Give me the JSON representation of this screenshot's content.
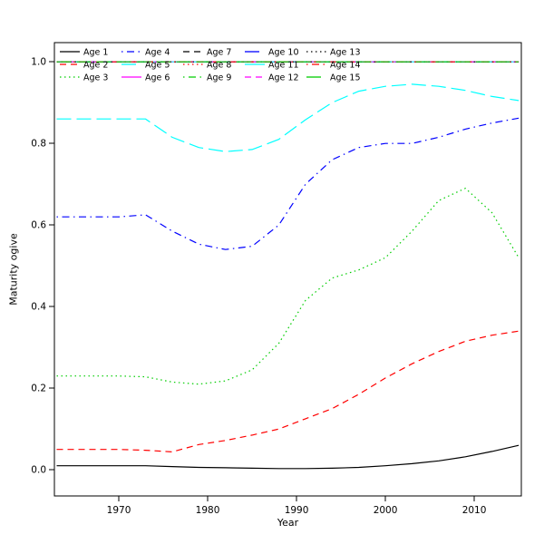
{
  "chart_data": {
    "type": "line",
    "title": "",
    "xlabel": "Year",
    "ylabel": "Maturity ogive",
    "xlim": [
      1962.75,
      2015.3
    ],
    "ylim": [
      -0.064,
      1.047
    ],
    "grid": false,
    "x_ticks": [
      1970,
      1980,
      1990,
      2000,
      2010
    ],
    "x_tick_labels": [
      "1970",
      "1980",
      "1990",
      "2000",
      "2010"
    ],
    "y_ticks": [
      0.0,
      0.2,
      0.4,
      0.6,
      0.8,
      1.0
    ],
    "y_tick_labels": [
      "0.0",
      "0.2",
      "0.4",
      "0.6",
      "0.8",
      "1.0"
    ],
    "legend": {
      "position": "top-left",
      "rows": 3,
      "columns": 5
    },
    "x": [
      1963,
      1966,
      1970,
      1973,
      1976,
      1979,
      1982,
      1985,
      1988,
      1991,
      1994,
      1997,
      2000,
      2003,
      2006,
      2009,
      2012,
      2015
    ],
    "series": [
      {
        "name": "Age 1",
        "color": "#000000",
        "linetype": "solid",
        "values": [
          0.01,
          0.01,
          0.01,
          0.01,
          0.008,
          0.006,
          0.005,
          0.004,
          0.003,
          0.003,
          0.004,
          0.006,
          0.01,
          0.015,
          0.022,
          0.032,
          0.045,
          0.06
        ]
      },
      {
        "name": "Age 2",
        "color": "#FF0000",
        "linetype": "dashed",
        "values": [
          0.05,
          0.05,
          0.05,
          0.048,
          0.044,
          0.062,
          0.072,
          0.085,
          0.1,
          0.125,
          0.15,
          0.185,
          0.225,
          0.26,
          0.29,
          0.315,
          0.33,
          0.34
        ]
      },
      {
        "name": "Age 3",
        "color": "#00CD00",
        "linetype": "dotted",
        "values": [
          0.23,
          0.23,
          0.23,
          0.228,
          0.215,
          0.21,
          0.218,
          0.245,
          0.31,
          0.415,
          0.47,
          0.49,
          0.52,
          0.585,
          0.66,
          0.69,
          0.63,
          0.52
        ]
      },
      {
        "name": "Age 4",
        "color": "#0000FF",
        "linetype": "dotdash",
        "values": [
          0.62,
          0.62,
          0.62,
          0.625,
          0.585,
          0.553,
          0.54,
          0.548,
          0.6,
          0.7,
          0.76,
          0.79,
          0.8,
          0.8,
          0.815,
          0.835,
          0.85,
          0.862
        ]
      },
      {
        "name": "Age 5",
        "color": "#00FFFF",
        "linetype": "longdash",
        "values": [
          0.86,
          0.86,
          0.86,
          0.86,
          0.815,
          0.79,
          0.78,
          0.785,
          0.81,
          0.858,
          0.9,
          0.928,
          0.94,
          0.945,
          0.94,
          0.93,
          0.915,
          0.905
        ]
      },
      {
        "name": "Age 6",
        "color": "#FF00FF",
        "linetype": "solid",
        "values": [
          1,
          1,
          1,
          1,
          1,
          1,
          1,
          1,
          1,
          1,
          1,
          1,
          1,
          1,
          1,
          1,
          1,
          1
        ]
      },
      {
        "name": "Age 7",
        "color": "#000000",
        "linetype": "dashed",
        "values": [
          1,
          1,
          1,
          1,
          1,
          1,
          1,
          1,
          1,
          1,
          1,
          1,
          1,
          1,
          1,
          1,
          1,
          1
        ]
      },
      {
        "name": "Age 8",
        "color": "#FF0000",
        "linetype": "dotted",
        "values": [
          1,
          1,
          1,
          1,
          1,
          1,
          1,
          1,
          1,
          1,
          1,
          1,
          1,
          1,
          1,
          1,
          1,
          1
        ]
      },
      {
        "name": "Age 9",
        "color": "#00CD00",
        "linetype": "dotdash",
        "values": [
          1,
          1,
          1,
          1,
          1,
          1,
          1,
          1,
          1,
          1,
          1,
          1,
          1,
          1,
          1,
          1,
          1,
          1
        ]
      },
      {
        "name": "Age 10",
        "color": "#0000FF",
        "linetype": "longdash",
        "values": [
          1,
          1,
          1,
          1,
          1,
          1,
          1,
          1,
          1,
          1,
          1,
          1,
          1,
          1,
          1,
          1,
          1,
          1
        ]
      },
      {
        "name": "Age 11",
        "color": "#00FFFF",
        "linetype": "solid",
        "values": [
          1,
          1,
          1,
          1,
          1,
          1,
          1,
          1,
          1,
          1,
          1,
          1,
          1,
          1,
          1,
          1,
          1,
          1
        ]
      },
      {
        "name": "Age 12",
        "color": "#FF00FF",
        "linetype": "dashed",
        "values": [
          1,
          1,
          1,
          1,
          1,
          1,
          1,
          1,
          1,
          1,
          1,
          1,
          1,
          1,
          1,
          1,
          1,
          1
        ]
      },
      {
        "name": "Age 13",
        "color": "#000000",
        "linetype": "dotted",
        "values": [
          1,
          1,
          1,
          1,
          1,
          1,
          1,
          1,
          1,
          1,
          1,
          1,
          1,
          1,
          1,
          1,
          1,
          1
        ]
      },
      {
        "name": "Age 14",
        "color": "#FF0000",
        "linetype": "dotdash",
        "values": [
          1,
          1,
          1,
          1,
          1,
          1,
          1,
          1,
          1,
          1,
          1,
          1,
          1,
          1,
          1,
          1,
          1,
          1
        ]
      },
      {
        "name": "Age 15",
        "color": "#00CD00",
        "linetype": "longdash",
        "values": [
          1,
          1,
          1,
          1,
          1,
          1,
          1,
          1,
          1,
          1,
          1,
          1,
          1,
          1,
          1,
          1,
          1,
          1
        ]
      }
    ],
    "colors": {
      "axis": "#000000",
      "background": "#ffffff"
    }
  }
}
